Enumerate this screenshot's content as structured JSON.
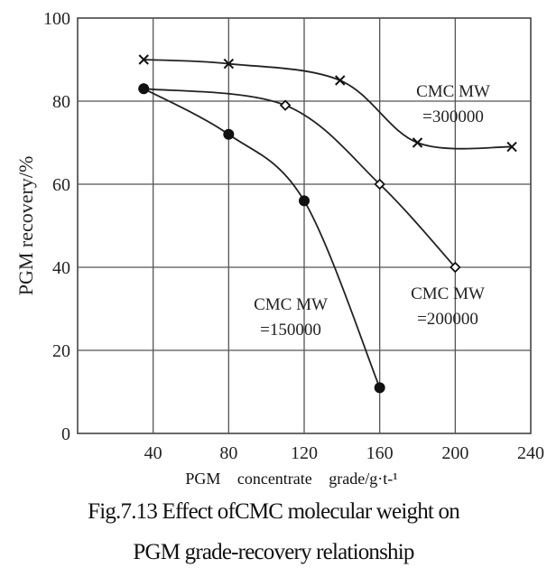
{
  "chart_data": {
    "type": "line",
    "title": "",
    "xlabel": "PGM concentrate grade/g·t-¹",
    "ylabel": "PGM recovery/%",
    "xlim": [
      0,
      240
    ],
    "ylim": [
      0,
      100
    ],
    "xticks": [
      "40",
      "80",
      "120",
      "160",
      "200",
      "240"
    ],
    "yticks": [
      "0",
      "20",
      "40",
      "60",
      "80",
      "100"
    ],
    "grid": true,
    "series": [
      {
        "name": "CMC MW =300000",
        "label_lines": [
          "CMC MW",
          "=300000"
        ],
        "marker": "x",
        "x": [
          35,
          80,
          139,
          180,
          230
        ],
        "y": [
          90,
          89,
          85,
          70,
          69
        ]
      },
      {
        "name": "CMC MW =200000",
        "label_lines": [
          "CMC MW",
          "=200000"
        ],
        "marker": "diamond",
        "x": [
          35,
          110,
          160,
          200
        ],
        "y": [
          83,
          79,
          60,
          40
        ]
      },
      {
        "name": "CMC MW =150000",
        "label_lines": [
          "CMC MW",
          "=150000"
        ],
        "marker": "circle",
        "x": [
          35,
          80,
          120,
          160
        ],
        "y": [
          83,
          72,
          56,
          11
        ]
      }
    ]
  },
  "caption": {
    "line1": "Fig.7.13 Effect ofCMC molecular weight on",
    "line2": "PGM grade-recovery relationship"
  }
}
